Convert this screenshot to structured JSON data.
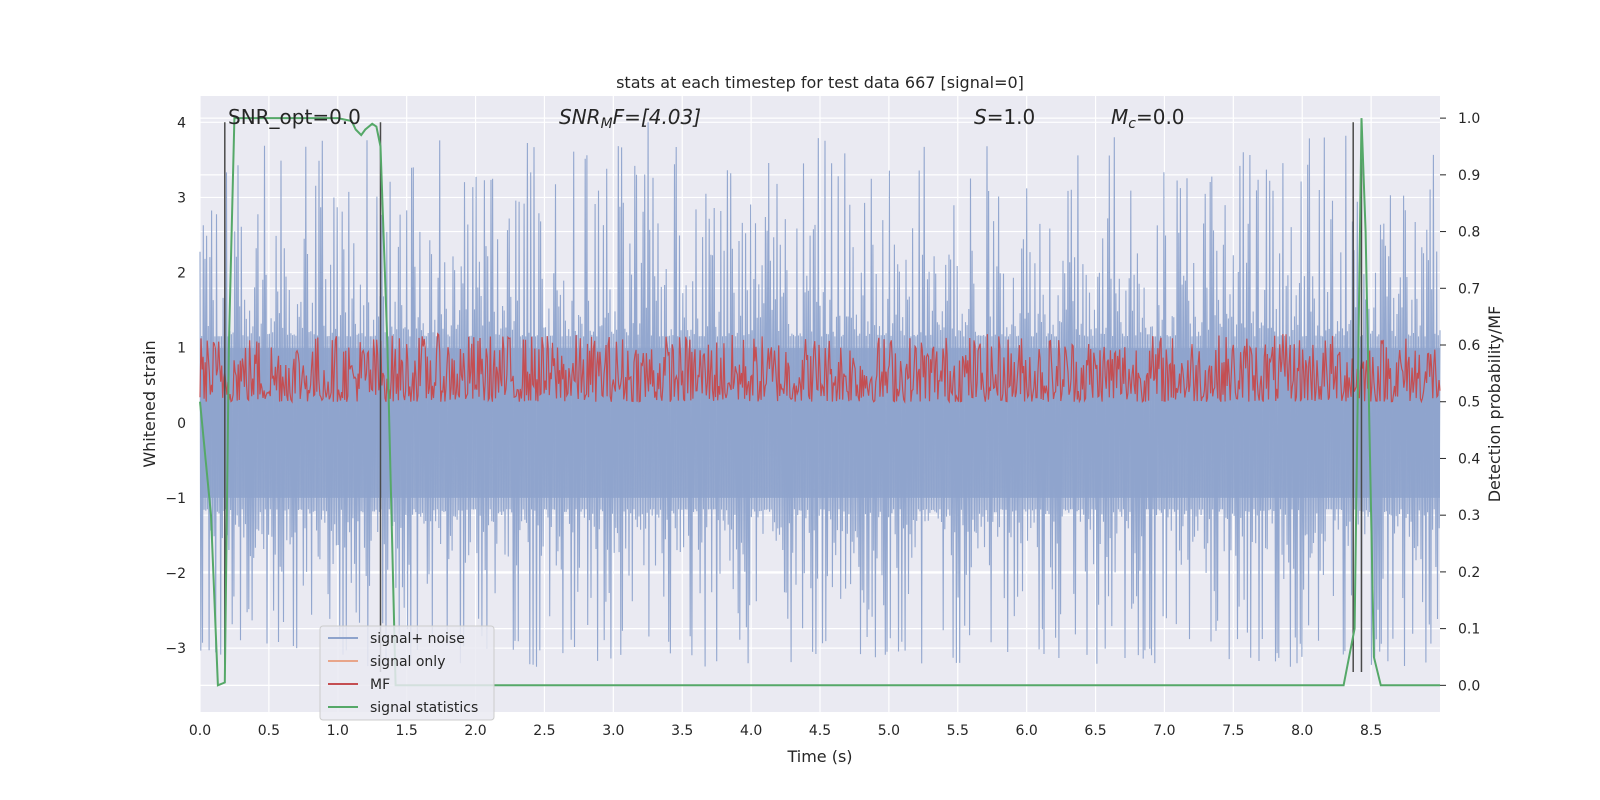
{
  "chart_data": {
    "type": "line",
    "title": "stats at each timestep for test data 667 [signal=0]",
    "xlabel": "Time (s)",
    "ylabel_left": "Whitened strain",
    "ylabel_right": "Detection probability/MF",
    "xlim": [
      0.0,
      9.0
    ],
    "ylim_left": [
      -3.85,
      4.35
    ],
    "ylim_right": [
      -0.047,
      1.039
    ],
    "x_ticks": [
      "0.0",
      "0.5",
      "1.0",
      "1.5",
      "2.0",
      "2.5",
      "3.0",
      "3.5",
      "4.0",
      "4.5",
      "5.0",
      "5.5",
      "6.0",
      "6.5",
      "7.0",
      "7.5",
      "8.0",
      "8.5"
    ],
    "y_ticks_left": [
      "4",
      "3",
      "2",
      "1",
      "0",
      "−1",
      "−2",
      "−3"
    ],
    "y_ticks_right": [
      "1.0",
      "0.9",
      "0.8",
      "0.7",
      "0.6",
      "0.5",
      "0.4",
      "0.3",
      "0.2",
      "0.1",
      "0.0"
    ],
    "grid": true,
    "legend_placement": "lower-left",
    "annotations": {
      "snr_opt": "SNR_opt=0.0",
      "snr_mf_prefix": "SNR",
      "snr_mf_sub": "M",
      "snr_mf_suffix": "F=[4.03]",
      "s_main": "S",
      "s_value": "=1.0",
      "mc_main": "M",
      "mc_sub": "c",
      "mc_value": "=0.0"
    },
    "series": [
      {
        "name": "signal+ noise",
        "axis": "left",
        "color": "#8ea3cc",
        "envelope_upper_typical": 1.8,
        "envelope_lower_typical": -1.8,
        "peak_max": 4.0,
        "peak_min": -3.25
      },
      {
        "name": "signal only",
        "axis": "left",
        "color": "#e8a58a",
        "values_note": "0"
      },
      {
        "name": "MF",
        "axis": "right",
        "color": "#c44e52",
        "band": [
          0.5,
          0.62
        ]
      },
      {
        "name": "signal statistics",
        "axis": "right",
        "color": "#55a868",
        "x": [
          0.0,
          0.08,
          0.13,
          0.18,
          0.21,
          0.25,
          0.28,
          0.4,
          0.6,
          0.8,
          1.0,
          1.1,
          1.13,
          1.17,
          1.2,
          1.25,
          1.28,
          1.31,
          1.36,
          1.42,
          1.5,
          2.0,
          3.0,
          4.0,
          5.0,
          6.0,
          7.0,
          8.0,
          8.3,
          8.38,
          8.43,
          8.46,
          8.52,
          8.57,
          8.65,
          9.0
        ],
        "y": [
          0.5,
          0.3,
          0.0,
          0.005,
          0.6,
          1.0,
          1.0,
          1.0,
          1.0,
          1.0,
          1.0,
          0.995,
          0.98,
          0.97,
          0.98,
          0.99,
          0.985,
          0.95,
          0.6,
          0.0,
          0.0,
          0.0,
          0.0,
          0.0,
          0.0,
          0.0,
          0.0,
          0.0,
          0.0,
          0.1,
          1.0,
          0.8,
          0.05,
          0.0,
          0.0,
          0.0
        ]
      }
    ],
    "vertical_markers": [
      0.18,
      1.31,
      8.37,
      8.43
    ],
    "legend": [
      "signal+ noise",
      "signal only",
      "MF",
      "signal statistics"
    ]
  }
}
